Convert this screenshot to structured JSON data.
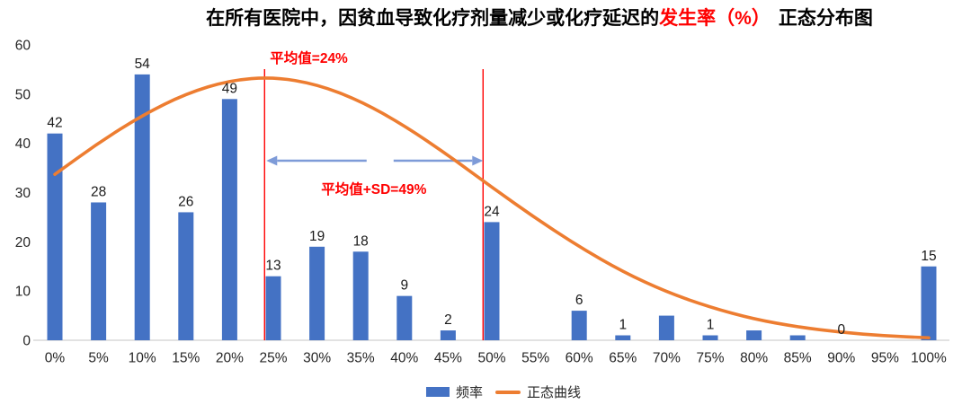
{
  "title": {
    "prefix": "在所有医院中，因贫血导致化疗剂量减少或化疗延迟的",
    "highlight": "发生率（%）",
    "suffix": "正态分布图"
  },
  "chart_data": {
    "type": "bar",
    "title": "在所有医院中，因贫血导致化疗剂量减少或化疗延迟的发生率（%）正态分布图",
    "categories": [
      "0%",
      "5%",
      "10%",
      "15%",
      "20%",
      "25%",
      "30%",
      "35%",
      "40%",
      "45%",
      "50%",
      "55%",
      "60%",
      "65%",
      "70%",
      "75%",
      "80%",
      "85%",
      "90%",
      "95%",
      "100%"
    ],
    "series": [
      {
        "name": "频率",
        "type": "bar",
        "color": "#4472C4",
        "values": [
          42,
          28,
          54,
          26,
          49,
          13,
          19,
          18,
          9,
          2,
          24,
          0,
          6,
          1,
          5,
          1,
          2,
          1,
          0,
          0,
          15
        ],
        "data_labels": [
          "42",
          "28",
          "54",
          "26",
          "49",
          "13",
          "19",
          "18",
          "9",
          "2",
          "24",
          "",
          "6",
          "1",
          "",
          "1",
          "",
          "",
          "0",
          "",
          "15"
        ]
      },
      {
        "name": "正态曲线",
        "type": "line",
        "color": "#ED7D31",
        "values": [
          33.7,
          40.1,
          45.7,
          50.1,
          52.8,
          53.5,
          52.0,
          48.6,
          43.6,
          37.6,
          31.1,
          24.8,
          19.0,
          13.9,
          9.8,
          6.7,
          4.3,
          2.7,
          1.6,
          0.9,
          0.5
        ]
      }
    ],
    "xlabel": "",
    "ylabel": "",
    "ylim": [
      0,
      60
    ],
    "yticks": [
      0,
      10,
      20,
      30,
      40,
      50,
      60
    ],
    "grid": false,
    "legend_position": "bottom",
    "annotations": [
      {
        "type": "vline",
        "x": 24,
        "label": "平均值=24%",
        "color": "#FF0000"
      },
      {
        "type": "vline",
        "x": 49,
        "label": "平均值+SD=49%",
        "color": "#FF0000"
      },
      {
        "type": "double_arrow",
        "from": 24,
        "to": 49,
        "color": "#7E9BD8"
      }
    ]
  },
  "legend": {
    "items": [
      {
        "label": "频率",
        "swatch": "bar",
        "color": "#4472C4"
      },
      {
        "label": "正态曲线",
        "swatch": "line",
        "color": "#ED7D31"
      }
    ]
  },
  "colors": {
    "bar": "#4472C4",
    "curve": "#ED7D31",
    "annotation": "#FF0000",
    "arrow": "#7E9BD8",
    "axis_line": "#D9D9D9",
    "text": "#262626"
  }
}
